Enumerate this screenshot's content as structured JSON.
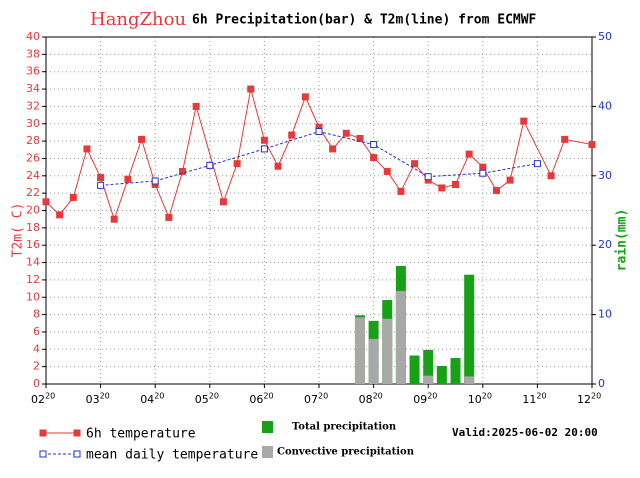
{
  "chart_data": {
    "type": "combo",
    "title_city": "HangZhou",
    "title": "6h Precipitation(bar) & T2m(line) from ECMWF",
    "ylabel": "T2m( C)",
    "y2label": "rain(mm)",
    "valid": "Valid:2025-06-02 20:00",
    "xlim": [
      0,
      10
    ],
    "xtick_hour": "20",
    "xticks": [
      {
        "value": 0,
        "label": "02"
      },
      {
        "value": 1,
        "label": "03"
      },
      {
        "value": 2,
        "label": "04"
      },
      {
        "value": 3,
        "label": "05"
      },
      {
        "value": 4,
        "label": "06"
      },
      {
        "value": 5,
        "label": "07"
      },
      {
        "value": 6,
        "label": "08"
      },
      {
        "value": 7,
        "label": "09"
      },
      {
        "value": 8,
        "label": "10"
      },
      {
        "value": 9,
        "label": "11"
      },
      {
        "value": 10,
        "label": "12"
      }
    ],
    "ylim": [
      0,
      40
    ],
    "yticks": [
      0,
      2,
      4,
      6,
      8,
      10,
      12,
      14,
      16,
      18,
      20,
      22,
      24,
      26,
      28,
      30,
      32,
      34,
      36,
      38,
      40
    ],
    "y2lim": [
      0,
      50
    ],
    "y2ticks": [
      0,
      10,
      20,
      30,
      40,
      50
    ],
    "grid": true,
    "series": [
      {
        "name": "6h temperature",
        "kind": "line",
        "color": "#e8393a",
        "dashed": false,
        "marker": "filled",
        "x": [
          0,
          0.25,
          0.5,
          0.75,
          1,
          1.25,
          1.5,
          1.75,
          2,
          2.25,
          2.5,
          2.75,
          3.25,
          3.5,
          3.75,
          4,
          4.25,
          4.5,
          4.75,
          5,
          5.25,
          5.5,
          5.75,
          6,
          6.25,
          6.5,
          6.75,
          7,
          7.25,
          7.5,
          7.75,
          8,
          8.25,
          8.5,
          8.75,
          9.25,
          9.5,
          10
        ],
        "values": [
          21.0,
          19.5,
          21.5,
          27.1,
          23.8,
          19.0,
          23.6,
          28.2,
          23.0,
          19.2,
          24.5,
          32.0,
          21.0,
          25.4,
          34.0,
          28.1,
          25.1,
          28.7,
          33.1,
          29.6,
          27.1,
          28.9,
          28.3,
          26.1,
          24.5,
          22.2,
          25.4,
          23.5,
          22.6,
          23.0,
          26.5,
          25.0,
          22.3,
          23.5,
          30.3,
          24.0,
          28.2,
          27.6
        ]
      },
      {
        "name": "mean daily temperature",
        "kind": "line",
        "color": "#2233cc",
        "dashed": true,
        "marker": "open",
        "x": [
          1,
          2,
          3,
          4,
          5,
          6,
          7,
          8,
          9
        ],
        "values": [
          22.9,
          23.4,
          25.2,
          27.1,
          29.1,
          27.6,
          23.9,
          24.3,
          25.4
        ]
      },
      {
        "name": "Total precipitation",
        "kind": "bar",
        "axis": "y2",
        "color": "#17a117",
        "x": [
          5.75,
          6,
          6.25,
          6.5,
          6.75,
          7,
          7.25,
          7.5,
          7.75
        ],
        "values": [
          9.9,
          9.1,
          12.1,
          17.0,
          4.1,
          4.9,
          2.6,
          3.75,
          15.75
        ]
      },
      {
        "name": "Convective precipitation",
        "kind": "bar",
        "axis": "y2",
        "color": "#a8a8a8",
        "x": [
          5.75,
          6,
          6.25,
          6.5,
          6.75,
          7,
          7.25,
          7.5,
          7.75
        ],
        "values": [
          9.6,
          6.5,
          9.4,
          13.4,
          0,
          1.2,
          0,
          0,
          1.1
        ]
      }
    ]
  }
}
